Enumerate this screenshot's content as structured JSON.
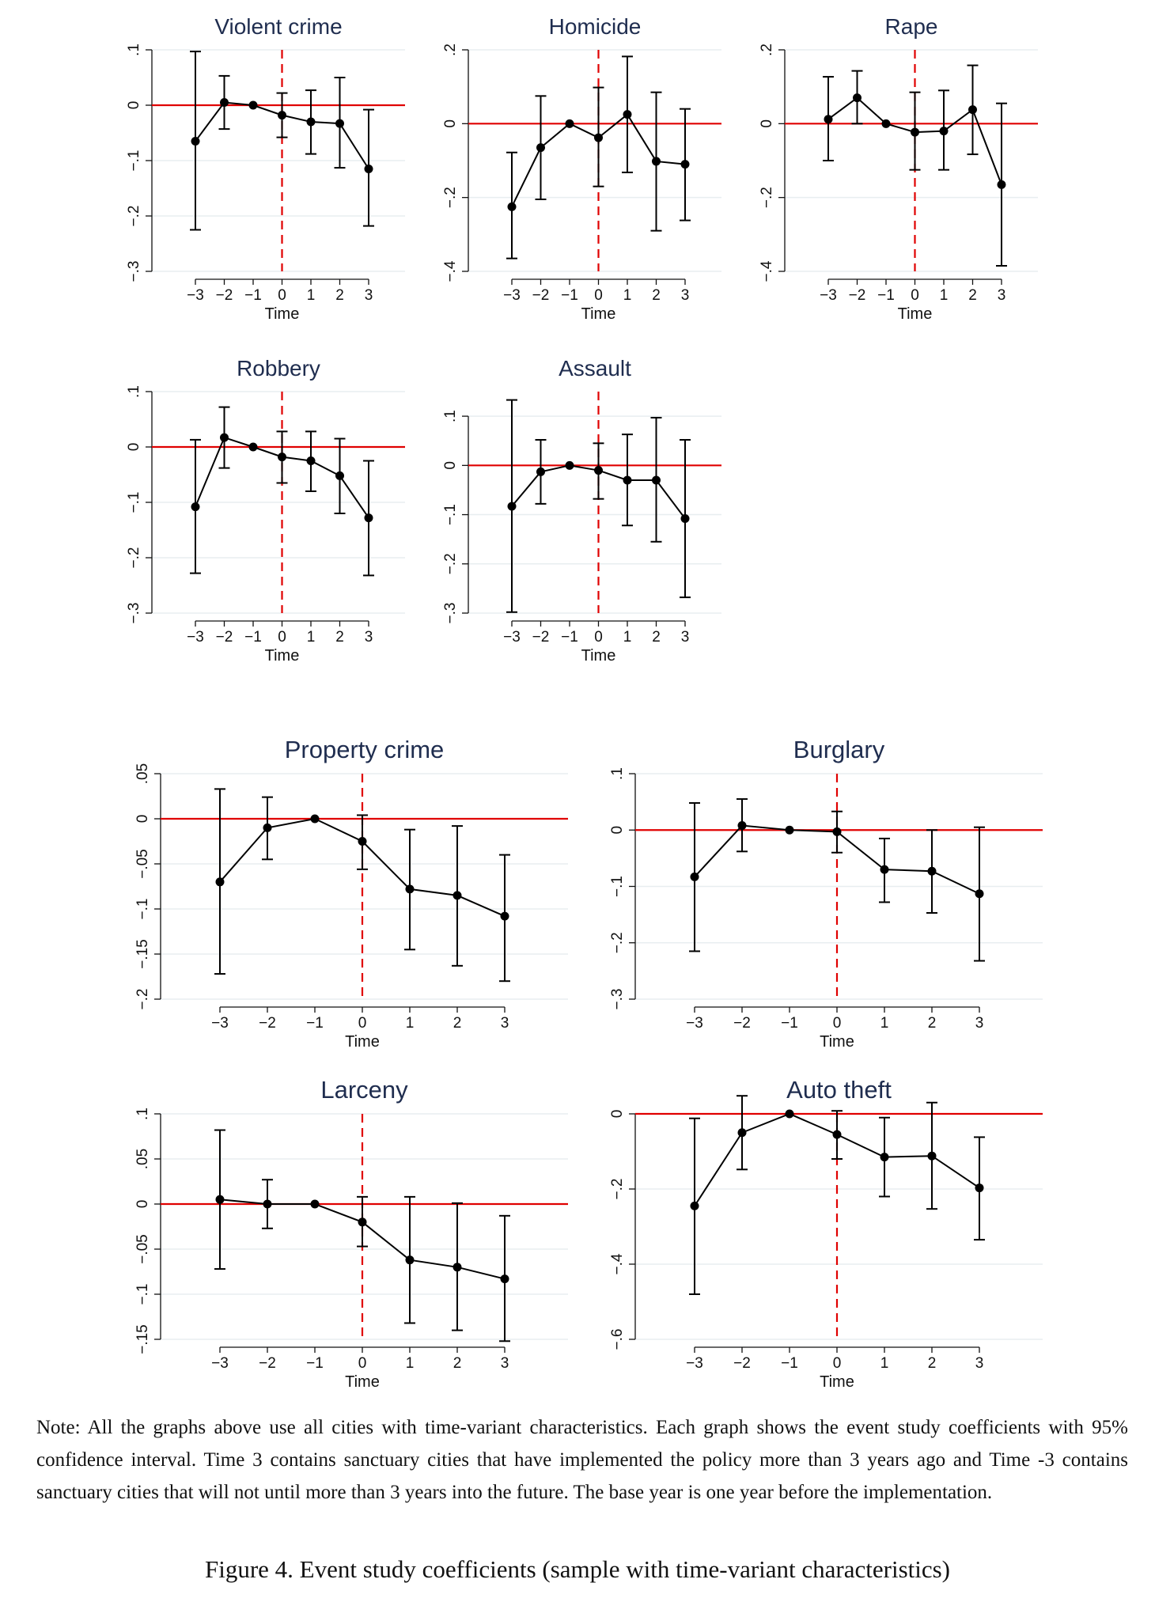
{
  "chart_data": [
    {
      "type": "line",
      "title": "Violent crime",
      "xlabel": "Time",
      "ylabel": "",
      "x": [
        -3,
        -2,
        -1,
        0,
        1,
        2,
        3
      ],
      "x_tick_labels": [
        "−3",
        "−2",
        "−1",
        "0",
        "1",
        "2",
        "3"
      ],
      "y": [
        -0.065,
        0.005,
        0.0,
        -0.018,
        -0.03,
        -0.033,
        -0.115
      ],
      "ci_lower": [
        -0.225,
        -0.043,
        0.0,
        -0.058,
        -0.088,
        -0.113,
        -0.218
      ],
      "ci_upper": [
        0.097,
        0.053,
        0.0,
        0.022,
        0.027,
        0.05,
        -0.008
      ],
      "ylim": [
        -0.3,
        0.1
      ],
      "y_ticks": [
        0.1,
        0,
        -0.1,
        -0.2,
        -0.3
      ],
      "y_tick_labels": [
        ".1",
        "0",
        "−.1",
        "−.2",
        "−.3"
      ],
      "reference_line_y": 0,
      "event_line_x": 0,
      "grid": true
    },
    {
      "type": "line",
      "title": "Homicide",
      "xlabel": "Time",
      "ylabel": "",
      "x": [
        -3,
        -2,
        -1,
        0,
        1,
        2,
        3
      ],
      "x_tick_labels": [
        "−3",
        "−2",
        "−1",
        "0",
        "1",
        "2",
        "3"
      ],
      "y": [
        -0.225,
        -0.065,
        0.0,
        -0.038,
        0.025,
        -0.102,
        -0.11
      ],
      "ci_lower": [
        -0.365,
        -0.205,
        0.0,
        -0.17,
        -0.132,
        -0.29,
        -0.262
      ],
      "ci_upper": [
        -0.078,
        0.075,
        0.0,
        0.098,
        0.182,
        0.085,
        0.04
      ],
      "ylim": [
        -0.4,
        0.2
      ],
      "y_ticks": [
        0.2,
        0,
        -0.2,
        -0.4
      ],
      "y_tick_labels": [
        ".2",
        "0",
        "−.2",
        "−.4"
      ],
      "reference_line_y": 0,
      "event_line_x": 0,
      "grid": true
    },
    {
      "type": "line",
      "title": "Rape",
      "xlabel": "Time",
      "ylabel": "",
      "x": [
        -3,
        -2,
        -1,
        0,
        1,
        2,
        3
      ],
      "x_tick_labels": [
        "−3",
        "−2",
        "−1",
        "0",
        "1",
        "2",
        "3"
      ],
      "y": [
        0.012,
        0.07,
        0.0,
        -0.023,
        -0.02,
        0.038,
        -0.165
      ],
      "ci_lower": [
        -0.1,
        0.0,
        0.0,
        -0.125,
        -0.125,
        -0.083,
        -0.385
      ],
      "ci_upper": [
        0.127,
        0.143,
        0.0,
        0.085,
        0.09,
        0.158,
        0.055
      ],
      "ylim": [
        -0.4,
        0.2
      ],
      "y_ticks": [
        0.2,
        0,
        -0.2,
        -0.4
      ],
      "y_tick_labels": [
        ".2",
        "0",
        "−.2",
        "−.4"
      ],
      "reference_line_y": 0,
      "event_line_x": 0,
      "grid": true
    },
    {
      "type": "line",
      "title": "Robbery",
      "xlabel": "Time",
      "ylabel": "",
      "x": [
        -3,
        -2,
        -1,
        0,
        1,
        2,
        3
      ],
      "x_tick_labels": [
        "−3",
        "−2",
        "−1",
        "0",
        "1",
        "2",
        "3"
      ],
      "y": [
        -0.108,
        0.017,
        0.0,
        -0.018,
        -0.025,
        -0.052,
        -0.128
      ],
      "ci_lower": [
        -0.228,
        -0.038,
        0.0,
        -0.065,
        -0.08,
        -0.12,
        -0.232
      ],
      "ci_upper": [
        0.013,
        0.072,
        0.0,
        0.028,
        0.028,
        0.015,
        -0.025
      ],
      "ylim": [
        -0.3,
        0.1
      ],
      "y_ticks": [
        0.1,
        0,
        -0.1,
        -0.2,
        -0.3
      ],
      "y_tick_labels": [
        ".1",
        "0",
        "−.1",
        "−.2",
        "−.3"
      ],
      "reference_line_y": 0,
      "event_line_x": 0,
      "grid": true
    },
    {
      "type": "line",
      "title": "Assault",
      "xlabel": "Time",
      "ylabel": "",
      "x": [
        -3,
        -2,
        -1,
        0,
        1,
        2,
        3
      ],
      "x_tick_labels": [
        "−3",
        "−2",
        "−1",
        "0",
        "1",
        "2",
        "3"
      ],
      "y": [
        -0.083,
        -0.013,
        0.0,
        -0.01,
        -0.03,
        -0.03,
        -0.108
      ],
      "ci_lower": [
        -0.298,
        -0.078,
        0.0,
        -0.068,
        -0.122,
        -0.155,
        -0.268
      ],
      "ci_upper": [
        0.133,
        0.052,
        0.0,
        0.045,
        0.063,
        0.097,
        0.052
      ],
      "ylim": [
        -0.3,
        0.15
      ],
      "y_ticks": [
        0.1,
        0,
        -0.1,
        -0.2,
        -0.3
      ],
      "y_tick_labels": [
        ".1",
        "0",
        "−.1",
        "−.2",
        "−.3"
      ],
      "reference_line_y": 0,
      "event_line_x": 0,
      "grid": true
    },
    {
      "type": "line",
      "title": "Property crime",
      "xlabel": "Time",
      "ylabel": "",
      "x": [
        -3,
        -2,
        -1,
        0,
        1,
        2,
        3
      ],
      "x_tick_labels": [
        "−3",
        "−2",
        "−1",
        "0",
        "1",
        "2",
        "3"
      ],
      "y": [
        -0.07,
        -0.01,
        0.0,
        -0.025,
        -0.078,
        -0.085,
        -0.108
      ],
      "ci_lower": [
        -0.172,
        -0.045,
        0.0,
        -0.056,
        -0.145,
        -0.163,
        -0.18
      ],
      "ci_upper": [
        0.033,
        0.024,
        0.0,
        0.004,
        -0.012,
        -0.008,
        -0.04
      ],
      "ylim": [
        -0.2,
        0.05
      ],
      "y_ticks": [
        0.05,
        0,
        -0.05,
        -0.1,
        -0.15,
        -0.2
      ],
      "y_tick_labels": [
        ".05",
        "0",
        "−.05",
        "−.1",
        "−.15",
        "−.2"
      ],
      "reference_line_y": 0,
      "event_line_x": 0,
      "grid": true
    },
    {
      "type": "line",
      "title": "Burglary",
      "xlabel": "Time",
      "ylabel": "",
      "x": [
        -3,
        -2,
        -1,
        0,
        1,
        2,
        3
      ],
      "x_tick_labels": [
        "−3",
        "−2",
        "−1",
        "0",
        "1",
        "2",
        "3"
      ],
      "y": [
        -0.083,
        0.008,
        0.0,
        -0.003,
        -0.07,
        -0.073,
        -0.113
      ],
      "ci_lower": [
        -0.215,
        -0.038,
        0.0,
        -0.04,
        -0.128,
        -0.147,
        -0.232
      ],
      "ci_upper": [
        0.048,
        0.055,
        0.0,
        0.033,
        -0.015,
        0.0,
        0.005
      ],
      "ylim": [
        -0.3,
        0.1
      ],
      "y_ticks": [
        0.1,
        0,
        -0.1,
        -0.2,
        -0.3
      ],
      "y_tick_labels": [
        ".1",
        "0",
        "−.1",
        "−.2",
        "−.3"
      ],
      "reference_line_y": 0,
      "event_line_x": 0,
      "grid": true
    },
    {
      "type": "line",
      "title": "Larceny",
      "xlabel": "Time",
      "ylabel": "",
      "x": [
        -3,
        -2,
        -1,
        0,
        1,
        2,
        3
      ],
      "x_tick_labels": [
        "−3",
        "−2",
        "−1",
        "0",
        "1",
        "2",
        "3"
      ],
      "y": [
        0.005,
        0.0,
        0.0,
        -0.02,
        -0.062,
        -0.07,
        -0.083
      ],
      "ci_lower": [
        -0.072,
        -0.027,
        0.0,
        -0.047,
        -0.132,
        -0.14,
        -0.152
      ],
      "ci_upper": [
        0.082,
        0.027,
        0.0,
        0.008,
        0.008,
        0.001,
        -0.013
      ],
      "ylim": [
        -0.15,
        0.1
      ],
      "y_ticks": [
        0.1,
        0.05,
        0,
        -0.05,
        -0.1,
        -0.15
      ],
      "y_tick_labels": [
        ".1",
        ".05",
        "0",
        "−.05",
        "−.1",
        "−.15"
      ],
      "reference_line_y": 0,
      "event_line_x": 0,
      "grid": true
    },
    {
      "type": "line",
      "title": "Auto theft",
      "xlabel": "Time",
      "ylabel": "",
      "x": [
        -3,
        -2,
        -1,
        0,
        1,
        2,
        3
      ],
      "x_tick_labels": [
        "−3",
        "−2",
        "−1",
        "0",
        "1",
        "2",
        "3"
      ],
      "y": [
        -0.245,
        -0.05,
        0.0,
        -0.055,
        -0.115,
        -0.112,
        -0.197
      ],
      "ci_lower": [
        -0.48,
        -0.148,
        0.0,
        -0.12,
        -0.22,
        -0.253,
        -0.335
      ],
      "ci_upper": [
        -0.012,
        0.048,
        0.0,
        0.008,
        -0.01,
        0.03,
        -0.062
      ],
      "ylim": [
        -0.6,
        0.0
      ],
      "y_ticks": [
        0,
        -0.2,
        -0.4,
        -0.6
      ],
      "y_tick_labels": [
        "0",
        "−.2",
        "−.4",
        "−.6"
      ],
      "reference_line_y": 0,
      "event_line_x": 0,
      "grid": true
    }
  ],
  "colors": {
    "zero_line": "#e00000",
    "event_line": "#e00000",
    "series": "#000000",
    "grid": "#e8eef0",
    "axis": "#111111",
    "title": "#1f2d4f"
  },
  "note": "Note: All the graphs above use all cities with time-variant characteristics. Each graph shows the event study coefficients with 95% confidence interval. Time 3 contains sanctuary cities that have implemented the policy more than 3 years ago and Time -3 contains sanctuary cities that will not until more than 3 years into the future. The base year is one year before the implementation.",
  "caption": "Figure 4. Event study coefficients (sample with time-variant characteristics)"
}
